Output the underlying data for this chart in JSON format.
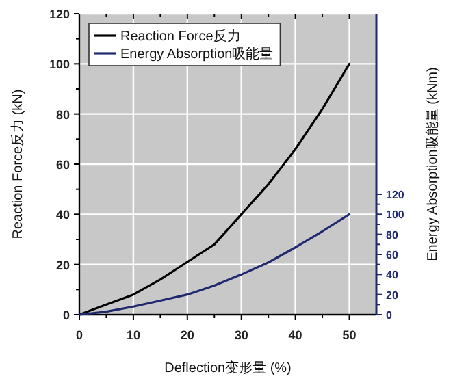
{
  "chart_data": {
    "type": "line",
    "xlabel": "Deflection变形量 (%)",
    "ylabel": "Reaction Force反力 (kN)",
    "y2label": "Energy Absorption吸能量 (kNm)",
    "xlim": [
      0,
      55
    ],
    "xticks": [
      0,
      10,
      20,
      30,
      40,
      50
    ],
    "ylim": [
      0,
      120
    ],
    "yticks": [
      0,
      20,
      40,
      60,
      80,
      100,
      120
    ],
    "y2lim": [
      0,
      300
    ],
    "y2ticks": [
      0,
      20,
      40,
      60,
      80,
      100,
      120
    ],
    "grid": true,
    "legend": "top left",
    "marker": "none",
    "line_style": "solid",
    "series": [
      {
        "name": "Reaction Force反力",
        "color": "#000000",
        "x": [
          0,
          5,
          10,
          15,
          20,
          25,
          30,
          35,
          40,
          45,
          50
        ],
        "values": [
          0,
          4,
          8,
          14,
          21,
          28,
          40,
          52,
          66,
          82,
          100
        ]
      },
      {
        "name": "Energy Absorption吸能量",
        "color": "#1f2a6e",
        "axis": "y2",
        "x": [
          0,
          5,
          10,
          15,
          20,
          25,
          30,
          35,
          40,
          45,
          50
        ],
        "values": [
          0,
          3,
          8,
          14,
          20,
          29,
          40,
          52,
          67,
          83,
          100
        ]
      }
    ]
  }
}
